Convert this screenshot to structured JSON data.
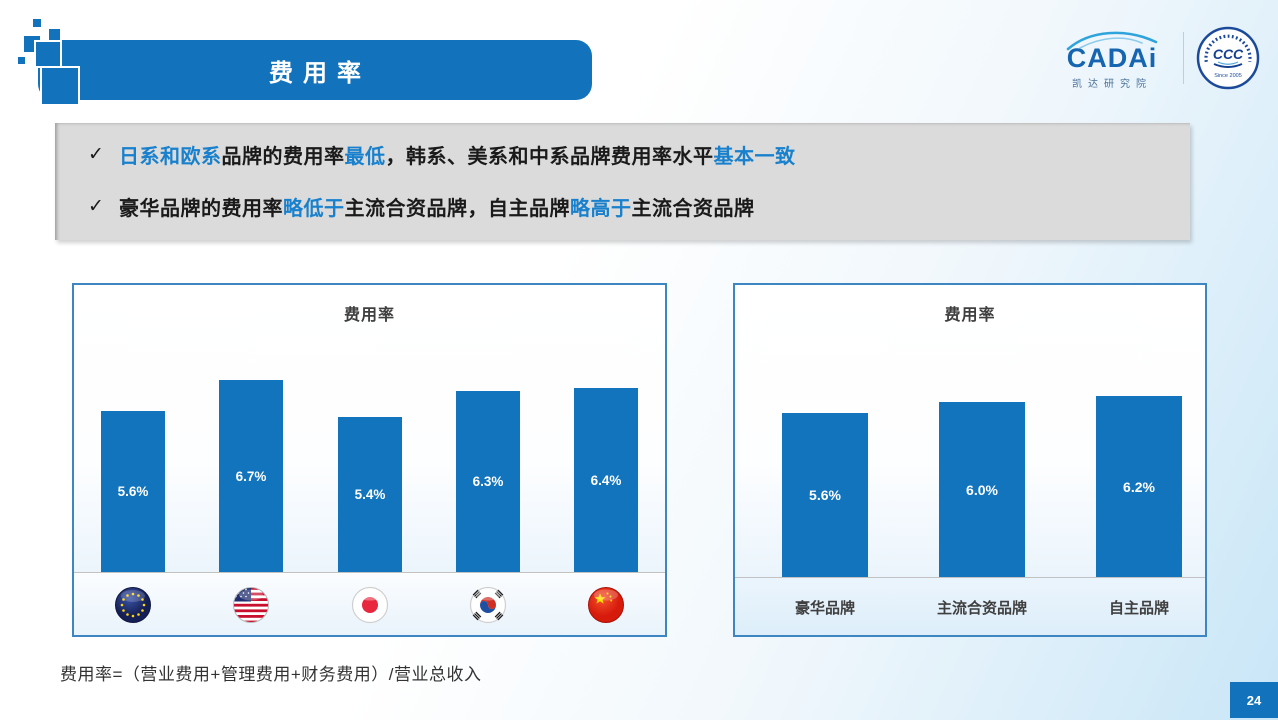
{
  "page": {
    "footnote": "费用率=（营业费用+管理费用+财务费用）/营业总收入",
    "page_number": "24"
  },
  "header": {
    "banner_title": "费用率",
    "cadai": {
      "name": "CADAi",
      "subtitle": "凯达研究院"
    },
    "emblem": {
      "since": "Since 2005"
    }
  },
  "callouts": [
    {
      "segments": [
        {
          "text": "日系和欧系",
          "color": "blue"
        },
        {
          "text": "品牌的费用率",
          "color": "black"
        },
        {
          "text": "最低",
          "color": "blue"
        },
        {
          "text": "，韩系、美系和中系品牌费用率水平",
          "color": "black"
        },
        {
          "text": "基本一致",
          "color": "blue"
        }
      ]
    },
    {
      "segments": [
        {
          "text": "豪华品牌的费用率",
          "color": "black"
        },
        {
          "text": "略低于",
          "color": "blue"
        },
        {
          "text": "主流合资品牌，自主品牌",
          "color": "black"
        },
        {
          "text": "略高于",
          "color": "blue"
        },
        {
          "text": "主流合资品牌",
          "color": "black"
        }
      ]
    }
  ],
  "colors": {
    "accent_blue": "#1273BC",
    "bullet_blue": "#1880CC",
    "chart_border": "#3E86C2",
    "title_gray": "#3F3F3F",
    "callout_bg": "#DBDBDB"
  },
  "chart_data": [
    {
      "type": "bar",
      "title": "费用率",
      "categories": [
        "欧系(EU)",
        "美系(USA)",
        "日系(Japan)",
        "韩系(South Korea)",
        "中系(China)"
      ],
      "category_icons": [
        "eu-flag",
        "usa-flag",
        "japan-flag",
        "korea-flag",
        "china-flag"
      ],
      "values": [
        5.6,
        6.7,
        5.4,
        6.3,
        6.4
      ],
      "labels": [
        "5.6%",
        "6.7%",
        "5.4%",
        "6.3%",
        "6.4%"
      ],
      "ylim": [
        0,
        10
      ],
      "bar_color": "#1274BC",
      "grid": false,
      "legend": "none"
    },
    {
      "type": "bar",
      "title": "费用率",
      "categories": [
        "豪华品牌",
        "主流合资品牌",
        "自主品牌"
      ],
      "values": [
        5.6,
        6.0,
        6.2
      ],
      "labels": [
        "5.6%",
        "6.0%",
        "6.2%"
      ],
      "ylim": [
        0,
        10
      ],
      "bar_color": "#1274BC",
      "grid": false,
      "legend": "none"
    }
  ]
}
